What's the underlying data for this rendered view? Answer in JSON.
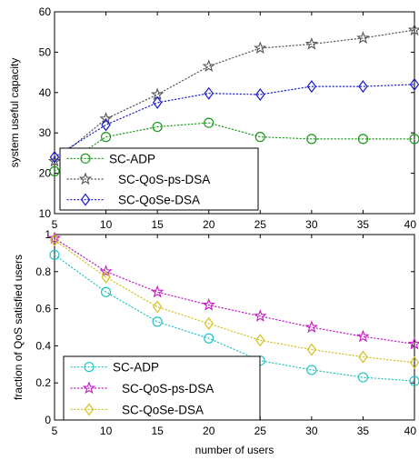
{
  "chart_data": [
    {
      "type": "line",
      "title": "",
      "xlabel": "",
      "ylabel": "system useful capacity",
      "xlim": [
        5,
        40
      ],
      "ylim": [
        10,
        60
      ],
      "x": [
        5,
        10,
        15,
        20,
        25,
        30,
        35,
        40
      ],
      "xticks": [
        5,
        10,
        15,
        20,
        25,
        30,
        35,
        40
      ],
      "yticks": [
        10,
        20,
        30,
        40,
        50,
        60
      ],
      "grid": false,
      "legend_position": "bottom-left",
      "series": [
        {
          "name": "SC-ADP",
          "marker": "circle",
          "color": "#1a9a1a",
          "values": [
            20.5,
            29.0,
            31.5,
            32.5,
            29.0,
            28.5,
            28.5,
            28.5
          ]
        },
        {
          "name": "SC-QoS-ps-DSA",
          "marker": "star",
          "color": "#555555",
          "values": [
            23.0,
            33.5,
            39.5,
            46.5,
            51.0,
            52.0,
            53.5,
            55.5
          ]
        },
        {
          "name": "SC-QoSe-DSA",
          "marker": "diamond",
          "color": "#1a1acc",
          "values": [
            24.0,
            32.0,
            37.5,
            39.8,
            39.5,
            41.5,
            41.5,
            42.0
          ]
        }
      ]
    },
    {
      "type": "line",
      "title": "",
      "xlabel": "number of users",
      "ylabel": "fraction of QoS satisfied users",
      "xlim": [
        5,
        40
      ],
      "ylim": [
        0,
        1
      ],
      "x": [
        5,
        10,
        15,
        20,
        25,
        30,
        35,
        40
      ],
      "xticks": [
        5,
        10,
        15,
        20,
        25,
        30,
        35,
        40
      ],
      "yticks": [
        0,
        0.2,
        0.4,
        0.6,
        0.8,
        1
      ],
      "ytick_labels": [
        "0",
        "0.2",
        "0.4",
        "0.6",
        "0.8",
        "1"
      ],
      "grid": false,
      "legend_position": "bottom-left",
      "series": [
        {
          "name": "SC-ADP",
          "marker": "circle",
          "color": "#22c4c4",
          "values": [
            0.89,
            0.69,
            0.53,
            0.44,
            0.32,
            0.27,
            0.23,
            0.21
          ]
        },
        {
          "name": "SC-QoS-ps-DSA",
          "marker": "star",
          "color": "#c41ac4",
          "values": [
            0.98,
            0.8,
            0.69,
            0.62,
            0.56,
            0.5,
            0.45,
            0.41
          ]
        },
        {
          "name": "SC-QoSe-DSA",
          "marker": "diamond",
          "color": "#d4c020",
          "values": [
            0.97,
            0.77,
            0.61,
            0.52,
            0.43,
            0.38,
            0.34,
            0.31
          ]
        }
      ]
    }
  ]
}
